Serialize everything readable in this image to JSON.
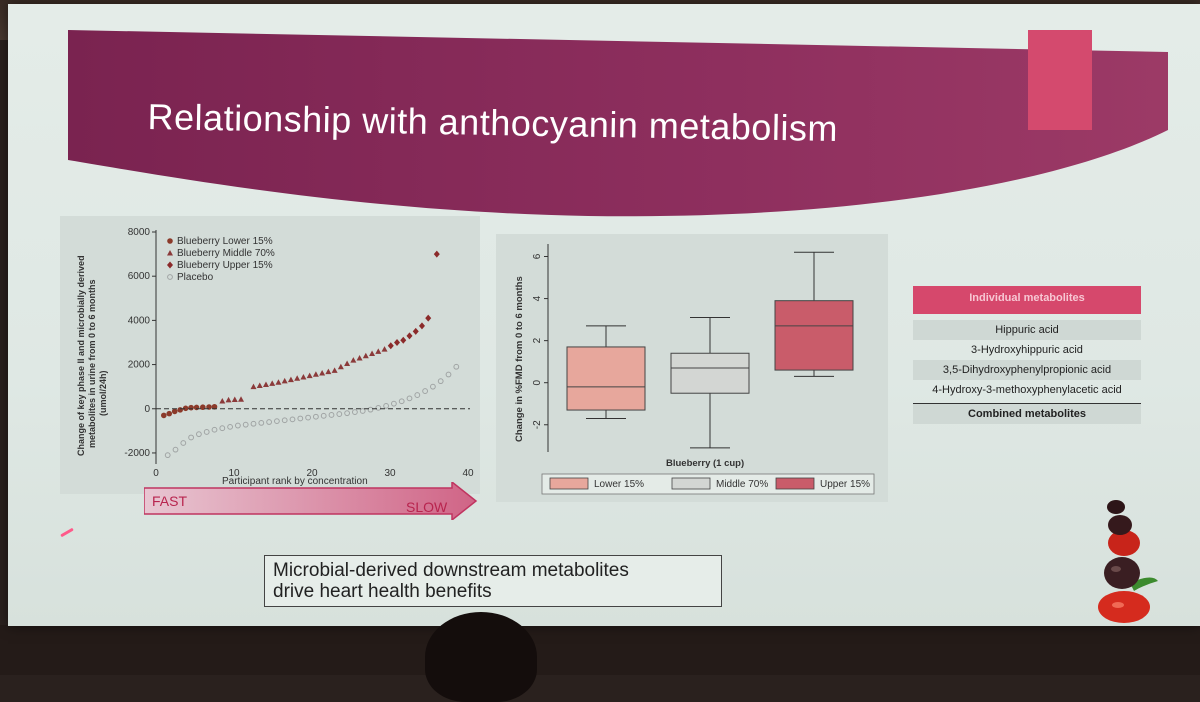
{
  "slide": {
    "title": "Relationship with anthocyanin metabolism",
    "arrow_fast": "FAST",
    "arrow_slow": "SLOW",
    "conclusion_line1": "Microbial-derived downstream metabolites",
    "conclusion_line2": "drive heart health benefits"
  },
  "table": {
    "header": "Individual metabolites",
    "rows": [
      "Hippuric acid",
      "3-Hydroxyhippuric acid",
      "3,5-Dihydroxyphenylpropionic acid",
      "4-Hydroxy-3-methoxyphenylacetic acid"
    ],
    "footer": "Combined metabolites"
  },
  "colors": {
    "title_band": "#8b2a57",
    "accent_pink": "#d44a6e",
    "lower": "#e7a79c",
    "middle": "#d3d6d3",
    "upper": "#c95c6a",
    "upper_marker": "#8b2a2a",
    "lower_marker": "#8b3a2a",
    "middle_marker": "#8b3a3a",
    "placebo_marker": "#a0a4a4"
  },
  "chart_data": [
    {
      "type": "scatter",
      "title": "",
      "xlabel": "Participant rank by concentration",
      "ylabel": "Change of key phase II and microbially derived metabolites in urine from 0 to 6 months (umol/24h)",
      "ylabel_line1": "Change of key phase II and microbially derived",
      "ylabel_line2": "metabolites in urine from 0 to 6 months",
      "ylabel_line3": "(umol/24h)",
      "xlim": [
        0,
        40
      ],
      "ylim": [
        -2500,
        8000
      ],
      "xticks": [
        0,
        10,
        20,
        30,
        40
      ],
      "yticks": [
        -2000,
        0,
        2000,
        4000,
        6000,
        8000
      ],
      "reference_line": 0,
      "legend": [
        "Blueberry Lower 15%",
        "Blueberry Middle 70%",
        "Blueberry Upper 15%",
        "Placebo"
      ],
      "series": [
        {
          "name": "Blueberry Lower 15%",
          "marker": "circle",
          "points": [
            [
              1,
              -300
            ],
            [
              1.7,
              -220
            ],
            [
              2.4,
              -120
            ],
            [
              3.1,
              -50
            ],
            [
              3.8,
              20
            ],
            [
              4.5,
              50
            ],
            [
              5.2,
              60
            ],
            [
              6,
              70
            ],
            [
              6.8,
              80
            ],
            [
              7.5,
              90
            ]
          ]
        },
        {
          "name": "Blueberry Middle 70%",
          "marker": "triangle",
          "points": [
            [
              8.5,
              350
            ],
            [
              9.3,
              400
            ],
            [
              10.1,
              420
            ],
            [
              10.9,
              430
            ],
            [
              12.5,
              1000
            ],
            [
              13.3,
              1050
            ],
            [
              14.1,
              1100
            ],
            [
              14.9,
              1150
            ],
            [
              15.7,
              1200
            ],
            [
              16.5,
              1260
            ],
            [
              17.3,
              1320
            ],
            [
              18.1,
              1380
            ],
            [
              18.9,
              1440
            ],
            [
              19.7,
              1500
            ],
            [
              20.5,
              1560
            ],
            [
              21.3,
              1620
            ],
            [
              22.1,
              1680
            ],
            [
              22.9,
              1740
            ],
            [
              23.7,
              1900
            ],
            [
              24.5,
              2050
            ],
            [
              25.3,
              2200
            ],
            [
              26.1,
              2300
            ],
            [
              26.9,
              2400
            ],
            [
              27.7,
              2500
            ],
            [
              28.5,
              2600
            ],
            [
              29.3,
              2700
            ]
          ]
        },
        {
          "name": "Blueberry Upper 15%",
          "marker": "diamond",
          "points": [
            [
              30.1,
              2850
            ],
            [
              30.9,
              3000
            ],
            [
              31.7,
              3100
            ],
            [
              32.5,
              3300
            ],
            [
              33.3,
              3500
            ],
            [
              34.1,
              3750
            ],
            [
              34.9,
              4100
            ],
            [
              36,
              7000
            ]
          ]
        },
        {
          "name": "Placebo",
          "marker": "open-circle",
          "points": [
            [
              1.5,
              -2100
            ],
            [
              2.5,
              -1850
            ],
            [
              3.5,
              -1550
            ],
            [
              4.5,
              -1300
            ],
            [
              5.5,
              -1150
            ],
            [
              6.5,
              -1050
            ],
            [
              7.5,
              -950
            ],
            [
              8.5,
              -880
            ],
            [
              9.5,
              -820
            ],
            [
              10.5,
              -760
            ],
            [
              11.5,
              -720
            ],
            [
              12.5,
              -680
            ],
            [
              13.5,
              -640
            ],
            [
              14.5,
              -600
            ],
            [
              15.5,
              -560
            ],
            [
              16.5,
              -520
            ],
            [
              17.5,
              -480
            ],
            [
              18.5,
              -440
            ],
            [
              19.5,
              -400
            ],
            [
              20.5,
              -360
            ],
            [
              21.5,
              -320
            ],
            [
              22.5,
              -280
            ],
            [
              23.5,
              -240
            ],
            [
              24.5,
              -200
            ],
            [
              25.5,
              -150
            ],
            [
              26.5,
              -100
            ],
            [
              27.5,
              -40
            ],
            [
              28.5,
              40
            ],
            [
              29.5,
              130
            ],
            [
              30.5,
              230
            ],
            [
              31.5,
              340
            ],
            [
              32.5,
              470
            ],
            [
              33.5,
              620
            ],
            [
              34.5,
              800
            ],
            [
              35.5,
              1000
            ],
            [
              36.5,
              1250
            ],
            [
              37.5,
              1550
            ],
            [
              38.5,
              1900
            ]
          ]
        }
      ]
    },
    {
      "type": "box",
      "title": "",
      "xlabel": "Blueberry (1 cup)",
      "ylabel": "Change in %FMD from 0 to 6 months",
      "ylim": [
        -3.2,
        6.5
      ],
      "yticks": [
        -2,
        0,
        2,
        4,
        6
      ],
      "legend": [
        "Lower 15%",
        "Middle 70%",
        "Upper 15%"
      ],
      "series": [
        {
          "name": "Lower 15%",
          "whisker_low": -1.7,
          "q1": -1.3,
          "median": -0.2,
          "q3": 1.7,
          "whisker_high": 2.7
        },
        {
          "name": "Middle 70%",
          "whisker_low": -3.1,
          "q1": -0.5,
          "median": 0.7,
          "q3": 1.4,
          "whisker_high": 3.1
        },
        {
          "name": "Upper 15%",
          "whisker_low": 0.3,
          "q1": 0.6,
          "median": 2.7,
          "q3": 3.9,
          "whisker_high": 6.2
        }
      ]
    }
  ]
}
